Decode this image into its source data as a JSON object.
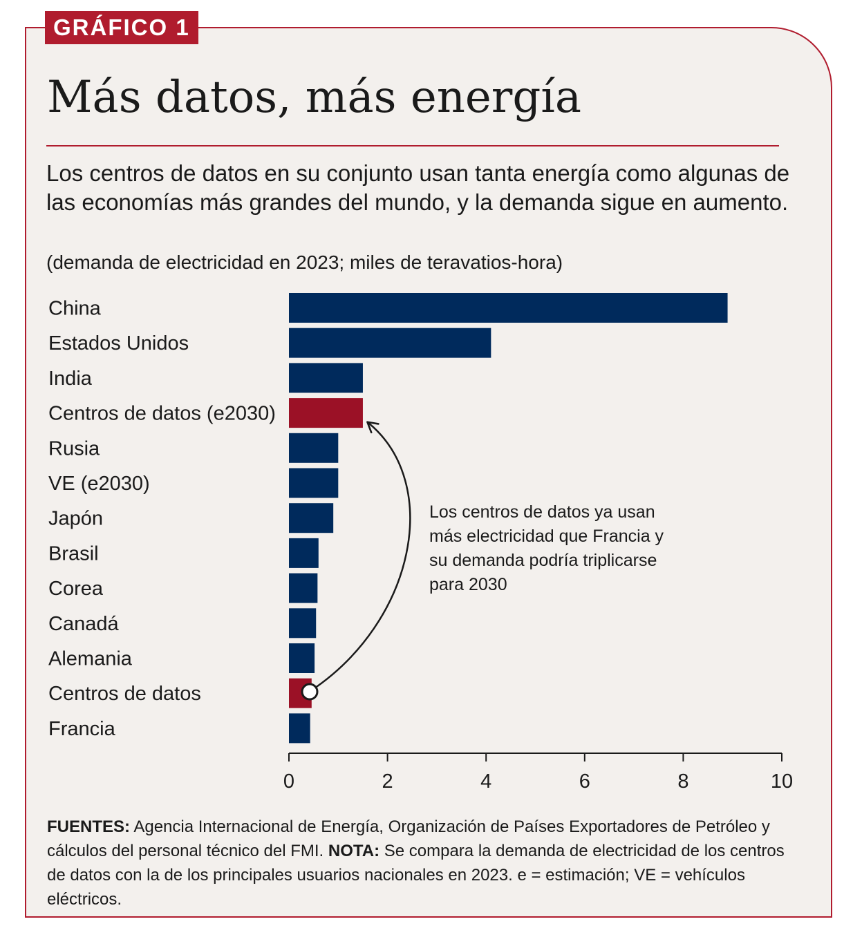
{
  "header": {
    "tag": "GRÁFICO 1",
    "title": "Más datos, más energía",
    "subtitle": "Los centros de datos en su conjunto usan tanta energía como algunas de las economías más grandes del mundo, y la demanda sigue en aumento.",
    "units": "(demanda de electricidad en 2023; miles de teravatios-hora)"
  },
  "annotation": "Los centros de datos ya usan más electricidad que Francia y su demanda podría triplicarse para 2030",
  "footer": {
    "sources_label": "FUENTES:",
    "sources_text": "Agencia Internacional de Energía, Organización de Países Exportadores de Petróleo y cálculos del personal técnico del FMI.",
    "note_label": "NOTA:",
    "note_text": "Se compara la demanda de electricidad de los centros de datos con la de los principales usuarios nacionales en 2023. e = estimación; VE = vehículos eléctricos."
  },
  "colors": {
    "navy": "#002a5c",
    "red": "#9b1126",
    "accent": "#b01c2e",
    "background": "#f3f0ed"
  },
  "chart_data": {
    "type": "bar",
    "orientation": "horizontal",
    "title": "Más datos, más energía",
    "xlabel": "",
    "ylabel": "",
    "xlim": [
      0,
      10
    ],
    "xticks": [
      0,
      2,
      4,
      6,
      8,
      10
    ],
    "grid": false,
    "categories": [
      "China",
      "Estados Unidos",
      "India",
      "Centros de datos (e2030)",
      "Rusia",
      "VE (e2030)",
      "Japón",
      "Brasil",
      "Corea",
      "Canadá",
      "Alemania",
      "Centros de datos",
      "Francia"
    ],
    "values": [
      8.9,
      4.1,
      1.5,
      1.5,
      1.0,
      1.0,
      0.9,
      0.6,
      0.58,
      0.55,
      0.52,
      0.46,
      0.43
    ],
    "highlight": [
      "Centros de datos (e2030)",
      "Centros de datos"
    ]
  }
}
